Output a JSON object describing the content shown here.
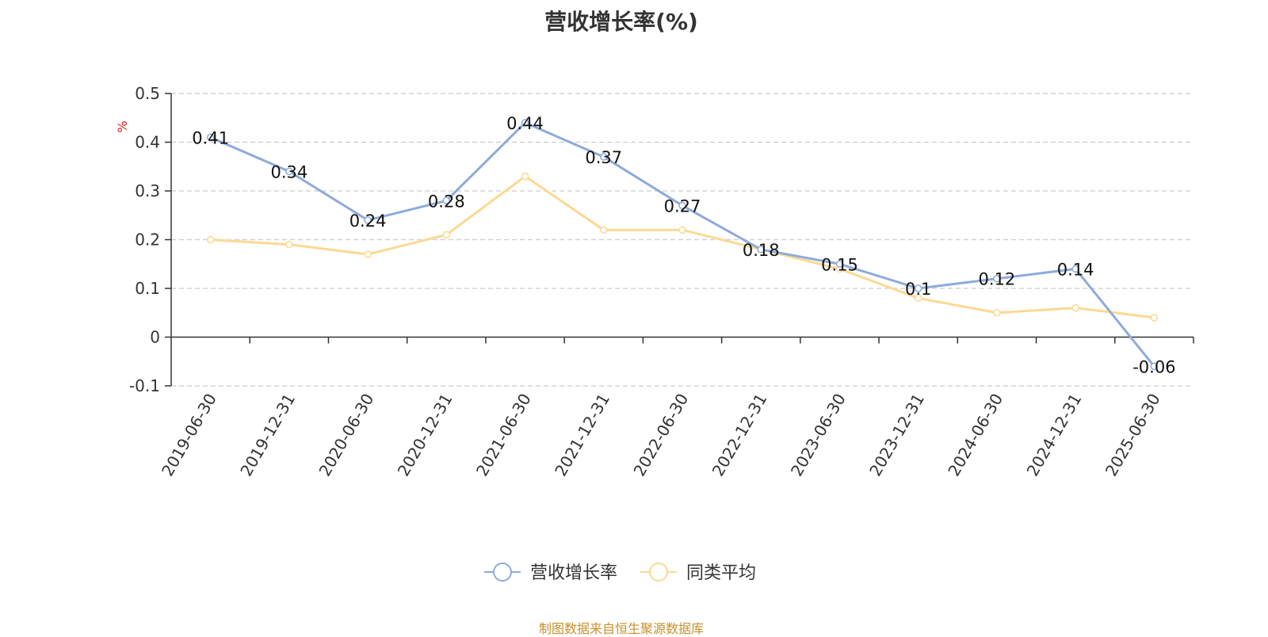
{
  "title": "营收增长率(%)",
  "footer": "制图数据来自恒生聚源数据库",
  "colors": {
    "series1": "#8EAADB",
    "series2": "#FCD992",
    "axis": "#333333",
    "grid": "#cccccc",
    "unit": "#e0201b",
    "footer": "#c8902a"
  },
  "chart_data": {
    "type": "line",
    "title": "营收增长率(%)",
    "ylabel": "%",
    "ylim": [
      -0.1,
      0.5
    ],
    "yticks": [
      -0.1,
      0,
      0.1,
      0.2,
      0.3,
      0.4,
      0.5
    ],
    "grid": true,
    "legend_position": "bottom-center",
    "x": [
      "2019-06-30",
      "2019-12-31",
      "2020-06-30",
      "2020-12-31",
      "2021-06-30",
      "2021-12-31",
      "2022-06-30",
      "2022-12-31",
      "2023-06-30",
      "2023-12-31",
      "2024-06-30",
      "2024-12-31",
      "2025-06-30"
    ],
    "series": [
      {
        "name": "营收增长率",
        "values": [
          0.41,
          0.34,
          0.24,
          0.28,
          0.44,
          0.37,
          0.27,
          0.18,
          0.15,
          0.1,
          0.12,
          0.14,
          -0.06
        ],
        "labels": [
          "0.41",
          "0.34",
          "0.24",
          "0.28",
          "0.44",
          "0.37",
          "0.27",
          "0.18",
          "0.15",
          "0.1",
          "0.12",
          "0.14",
          "-0.06"
        ]
      },
      {
        "name": "同类平均",
        "values": [
          0.2,
          0.19,
          0.17,
          0.21,
          0.33,
          0.22,
          0.22,
          0.18,
          0.14,
          0.08,
          0.05,
          0.06,
          0.04
        ]
      }
    ]
  }
}
